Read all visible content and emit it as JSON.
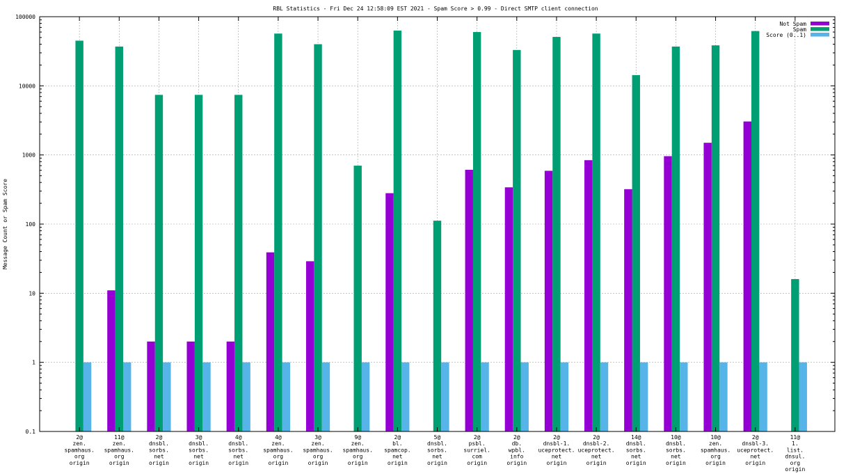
{
  "chart_data": {
    "type": "bar",
    "title": "RBL Statistics - Fri Dec 24 12:58:09 EST 2021 - Spam Score > 0.99 - Direct SMTP client connection",
    "xlabel": "",
    "ylabel": "Message Count or Spam Score",
    "yscale": "log",
    "ylim": [
      0.1,
      100000
    ],
    "yticks": [
      0.1,
      1,
      10,
      100,
      1000,
      10000,
      100000
    ],
    "ytick_labels": [
      "0.1",
      "1",
      "10",
      "100",
      "1000",
      "10000",
      "100000"
    ],
    "grid": true,
    "legend_position": "top-right",
    "categories": [
      [
        "2@",
        "zen.",
        "spamhaus.",
        "org",
        "origin"
      ],
      [
        "11@",
        "zen.",
        "spamhaus.",
        "org",
        "origin"
      ],
      [
        "2@",
        "dnsbl.",
        "sorbs.",
        "net",
        "origin"
      ],
      [
        "3@",
        "dnsbl.",
        "sorbs.",
        "net",
        "origin"
      ],
      [
        "4@",
        "dnsbl.",
        "sorbs.",
        "net",
        "origin"
      ],
      [
        "4@",
        "zen.",
        "spamhaus.",
        "org",
        "origin"
      ],
      [
        "3@",
        "zen.",
        "spamhaus.",
        "org",
        "origin"
      ],
      [
        "9@",
        "zen.",
        "spamhaus.",
        "org",
        "origin"
      ],
      [
        "2@",
        "bl.",
        "spamcop.",
        "net",
        "origin"
      ],
      [
        "5@",
        "dnsbl.",
        "sorbs.",
        "net",
        "origin"
      ],
      [
        "2@",
        "psbl.",
        "surriel.",
        "com",
        "origin"
      ],
      [
        "2@",
        "db.",
        "wpbl.",
        "info",
        "origin"
      ],
      [
        "2@",
        "dnsbl-1.",
        "uceprotect.",
        "net",
        "origin"
      ],
      [
        "2@",
        "dnsbl-2.",
        "uceprotect.",
        "net",
        "origin"
      ],
      [
        "14@",
        "dnsbl.",
        "sorbs.",
        "net",
        "origin"
      ],
      [
        "10@",
        "dnsbl.",
        "sorbs.",
        "net",
        "origin"
      ],
      [
        "10@",
        "zen.",
        "spamhaus.",
        "org",
        "origin"
      ],
      [
        "2@",
        "dnsbl-3.",
        "uceprotect.",
        "net",
        "origin"
      ],
      [
        "11@",
        "1.",
        "list.",
        "dnsul.",
        "org",
        "origin"
      ]
    ],
    "series": [
      {
        "name": "Not Spam",
        "color": "#9400d3",
        "values": [
          null,
          11,
          2,
          2,
          2,
          39,
          29,
          null,
          280,
          null,
          610,
          340,
          590,
          840,
          320,
          960,
          1500,
          3050,
          null
        ]
      },
      {
        "name": "Spam",
        "color": "#009e73",
        "values": [
          45000,
          37000,
          7400,
          7400,
          7400,
          57000,
          40000,
          700,
          63000,
          112,
          60000,
          33000,
          51000,
          57000,
          14300,
          37000,
          38500,
          62000,
          16
        ]
      },
      {
        "name": "Score (0..1)",
        "color": "#56b4e9",
        "values": [
          1,
          1,
          1,
          1,
          1,
          1,
          1,
          1,
          1,
          1,
          1,
          1,
          1,
          1,
          1,
          1,
          1,
          1,
          1
        ]
      }
    ]
  }
}
